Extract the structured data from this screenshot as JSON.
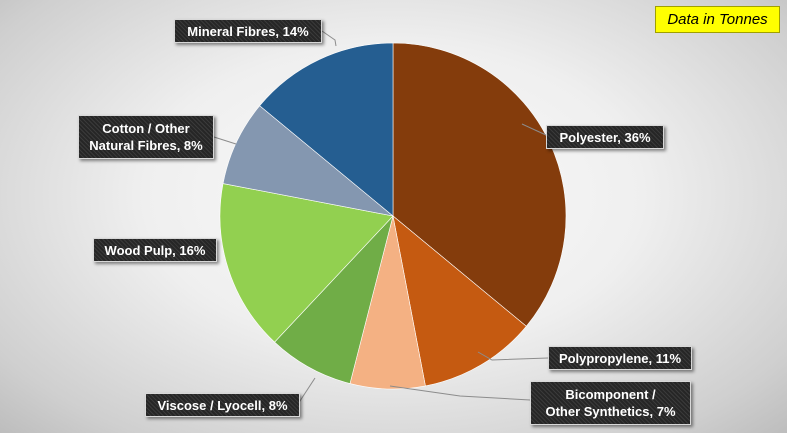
{
  "chart_data": {
    "type": "pie",
    "annotation": "Data in Tonnes",
    "slices": [
      {
        "label": "Polyester",
        "value": 36,
        "color": "#843c0c"
      },
      {
        "label": "Polypropylene",
        "value": 11,
        "color": "#c55a11"
      },
      {
        "label": "Bicomponent / Other Synthetics",
        "value": 7,
        "color": "#f4b183"
      },
      {
        "label": "Viscose / Lyocell",
        "value": 8,
        "color": "#70ad47"
      },
      {
        "label": "Wood Pulp",
        "value": 16,
        "color": "#92d050"
      },
      {
        "label": "Cotton / Other Natural Fibres",
        "value": 8,
        "color": "#8497b0"
      },
      {
        "label": "Mineral Fibres",
        "value": 14,
        "color": "#255e91"
      }
    ]
  },
  "labels": {
    "polyester": "Polyester, 36%",
    "polypropylene": "Polypropylene, 11%",
    "bicomponent_line1": "Bicomponent /",
    "bicomponent_line2": "Other Synthetics, 7%",
    "viscose": "Viscose / Lyocell, 8%",
    "wood_pulp": "Wood Pulp, 16%",
    "cotton_line1": "Cotton / Other",
    "cotton_line2": "Natural Fibres, 8%",
    "mineral": "Mineral Fibres, 14%"
  }
}
